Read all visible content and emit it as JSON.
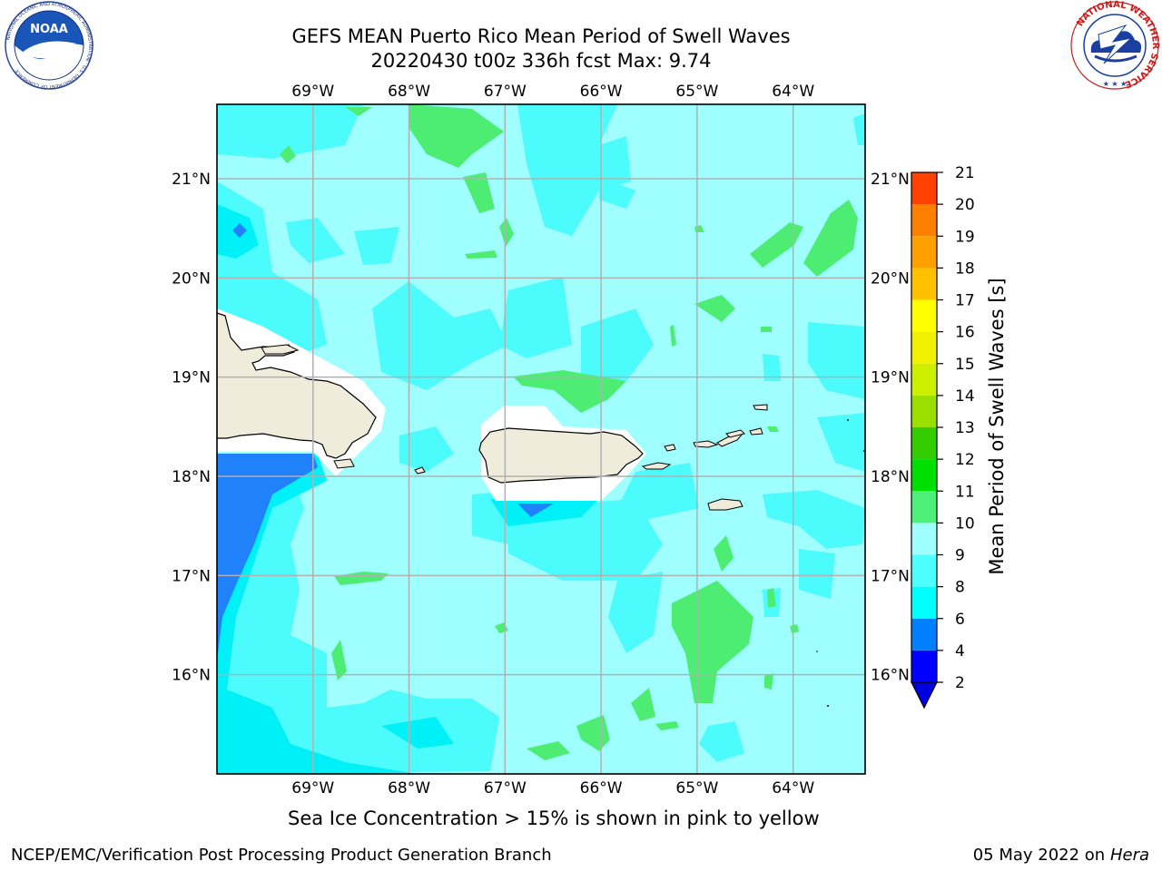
{
  "header": {
    "title_line1": "GEFS MEAN Puerto Rico Mean Period of Swell Waves",
    "title_line2": "20220430 t00z 336h fcst   Max: 9.74"
  },
  "logos": {
    "noaa": {
      "text": "NOAA",
      "ring_text": "NATIONAL OCEANIC AND ATMOSPHERIC ADMINISTRATION · U.S. DEPARTMENT OF COMMERCE"
    },
    "nws": {
      "ring_text": "NATIONAL WEATHER SERVICE"
    }
  },
  "map": {
    "lon_range": [
      -70,
      -63.25
    ],
    "lat_range": [
      15,
      21.75
    ],
    "lon_ticks": [
      {
        "value": -69,
        "label": "69°W"
      },
      {
        "value": -68,
        "label": "68°W"
      },
      {
        "value": -67,
        "label": "67°W"
      },
      {
        "value": -66,
        "label": "66°W"
      },
      {
        "value": -65,
        "label": "65°W"
      },
      {
        "value": -64,
        "label": "64°W"
      }
    ],
    "lat_ticks": [
      {
        "value": 21,
        "label": "21°N"
      },
      {
        "value": 20,
        "label": "20°N"
      },
      {
        "value": 19,
        "label": "19°N"
      },
      {
        "value": 18,
        "label": "18°N"
      },
      {
        "value": 17,
        "label": "17°N"
      },
      {
        "value": 16,
        "label": "16°N"
      }
    ],
    "grid": true,
    "colors": {
      "field_8_9": "#9ffefe",
      "field_6_8": "#4cfcfc",
      "field_4_6": "#00f0f8",
      "field_2_4": "#1f82fb",
      "field_9_10": "#4ded74",
      "land": "#efecdc",
      "no_data": "#ffffff",
      "grid_line": "#b0b0b0",
      "coast": "#000000"
    }
  },
  "colorbar": {
    "label": "Mean Period of Swell Waves [s]",
    "levels": [
      {
        "value": 2,
        "color": "#0000ff"
      },
      {
        "value": 4,
        "color": "#0080ff"
      },
      {
        "value": 6,
        "color": "#00ffff"
      },
      {
        "value": 8,
        "color": "#4dffff"
      },
      {
        "value": 9,
        "color": "#9fffff"
      },
      {
        "value": 10,
        "color": "#4df077"
      },
      {
        "value": 11,
        "color": "#00e000"
      },
      {
        "value": 12,
        "color": "#33cc00"
      },
      {
        "value": 13,
        "color": "#99e000"
      },
      {
        "value": 14,
        "color": "#ccf000"
      },
      {
        "value": 15,
        "color": "#f0f000"
      },
      {
        "value": 16,
        "color": "#ffff00"
      },
      {
        "value": 17,
        "color": "#ffc000"
      },
      {
        "value": 18,
        "color": "#ffa000"
      },
      {
        "value": 19,
        "color": "#ff8000"
      },
      {
        "value": 20,
        "color": "#ff4000"
      },
      {
        "value": 21,
        "color": "#ff1000"
      }
    ],
    "under_color": "#0000e0"
  },
  "notes": {
    "sea_ice": "Sea Ice Concentration > 15% is shown in pink to yellow"
  },
  "footer": {
    "left": "NCEP/EMC/Verification Post Processing Product Generation Branch",
    "date": "05 May 2022 on",
    "machine": "Hera"
  }
}
